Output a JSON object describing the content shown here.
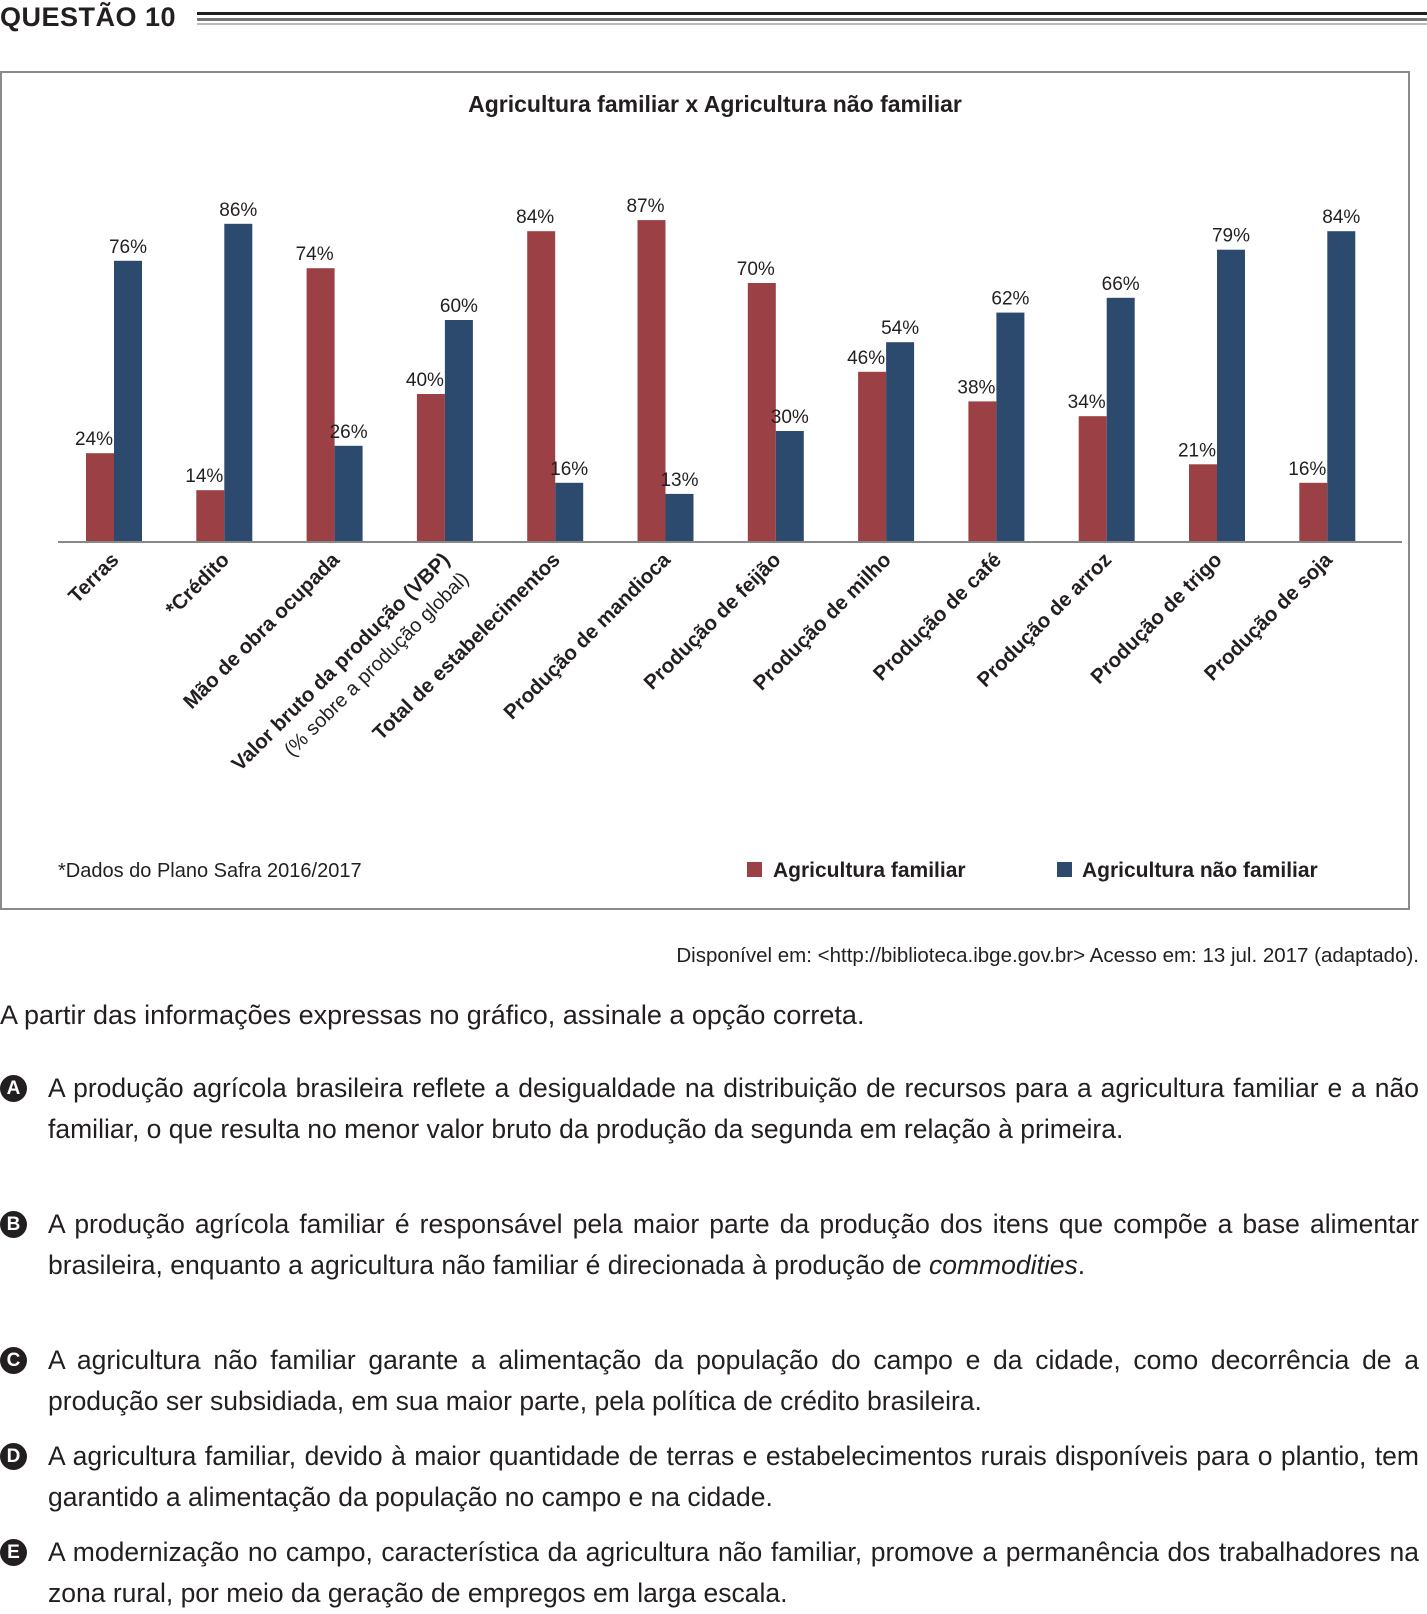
{
  "header": {
    "title": "QUESTÃO 10"
  },
  "chart_data": {
    "type": "bar",
    "title": "Agricultura familiar x Agricultura não familiar",
    "categories": [
      "Terras",
      "*Crédito",
      "Mão de obra ocupada",
      "Valor bruto da produção (VBP)",
      "Total de estabelecimentos",
      "Produção de mandioca",
      "Produção de feijão",
      "Produção de milho",
      "Produção de café",
      "Produção de arroz",
      "Produção de trigo",
      "Produção de soja"
    ],
    "category_sublabel": "(% sobre a produção global)",
    "series": [
      {
        "name": "Agricultura familiar",
        "color": "#9b4146",
        "values": [
          24,
          14,
          74,
          40,
          84,
          87,
          70,
          46,
          38,
          34,
          21,
          16
        ]
      },
      {
        "name": "Agricultura não familiar",
        "color": "#2c4a6e",
        "values": [
          76,
          86,
          26,
          60,
          16,
          13,
          30,
          54,
          62,
          66,
          79,
          84
        ]
      }
    ],
    "value_suffix": "%",
    "ylim": [
      0,
      100
    ],
    "grid": false,
    "legend_position": "bottom-right",
    "footnote": "*Dados do Plano Safra 2016/2017"
  },
  "source": "Disponível em: <http://biblioteca.ibge.gov.br> Acesso em: 13 jul. 2017 (adaptado).",
  "question": "A partir das informações expressas no gráfico, assinale a opção correta.",
  "options": [
    {
      "letter": "A",
      "text": "A produção agrícola brasileira reflete a desigualdade na distribuição de recursos para a agricultura familiar e a não familiar, o que resulta no menor valor bruto da produção da segunda em relação à primeira."
    },
    {
      "letter": "B",
      "text": "A produção agrícola familiar é responsável pela maior parte da produção dos itens que compõe a base alimentar brasileira, enquanto a agricultura não familiar é direcionada à produção de",
      "emphasis": "commodities",
      "tail": "."
    },
    {
      "letter": "C",
      "text": "A agricultura não familiar garante a alimentação da população do campo e da cidade, como decorrência de a produção ser subsidiada, em sua maior parte, pela política de crédito brasileira."
    },
    {
      "letter": "D",
      "text": "A agricultura familiar, devido à maior quantidade de terras e estabelecimentos rurais disponíveis para o plantio, tem garantido a alimentação da população no campo e na cidade."
    },
    {
      "letter": "E",
      "text": "A modernização no campo, característica da agricultura não familiar, promove a permanência dos trabalhadores na zona rural, por meio da geração de empregos em larga escala."
    }
  ]
}
